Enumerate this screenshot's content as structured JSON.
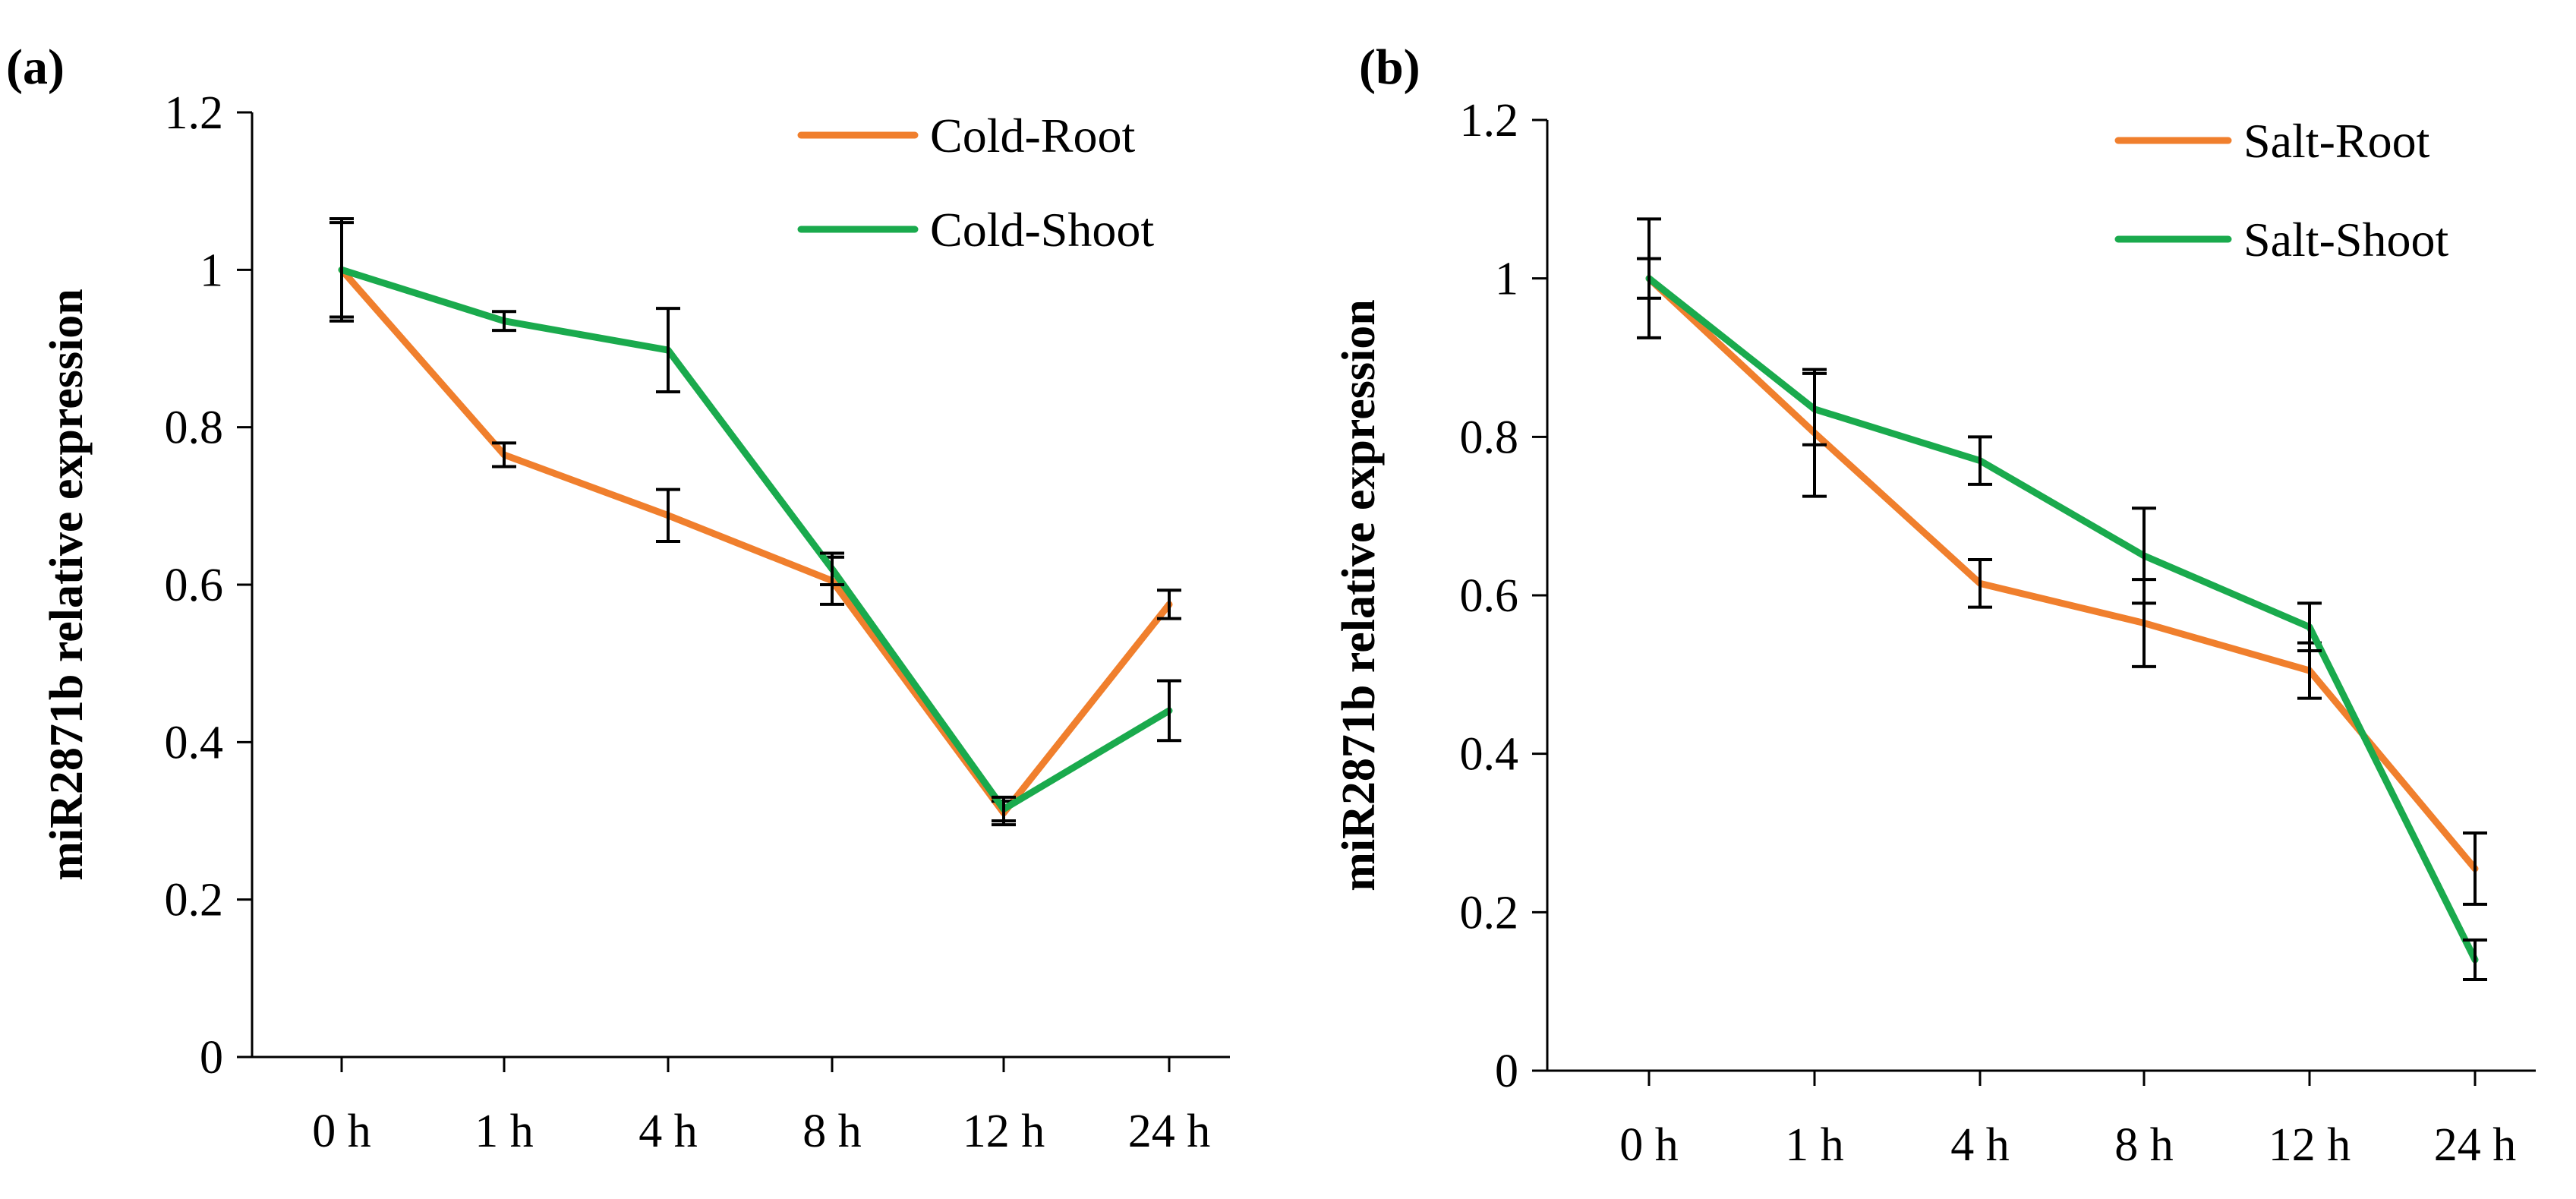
{
  "chart_data": [
    {
      "type": "line",
      "panel_label": "(a)",
      "title": "",
      "xlabel": "",
      "ylabel": "miR2871b relative expression",
      "categories": [
        "0 h",
        "1 h",
        "4 h",
        "8 h",
        "12 h",
        "24 h"
      ],
      "ylim": [
        0,
        1.2
      ],
      "yticks": [
        "0",
        "0.2",
        "0.4",
        "0.6",
        "0.8",
        "1",
        "1.2"
      ],
      "grid": false,
      "legend_position": "top-right",
      "series": [
        {
          "name": "Cold-Root",
          "color": "#f07f2d",
          "values": [
            1.0,
            0.765,
            0.688,
            0.605,
            0.31,
            0.575
          ],
          "errors": [
            0.06,
            0.015,
            0.033,
            0.03,
            0.015,
            0.018
          ]
        },
        {
          "name": "Cold-Shoot",
          "color": "#1aaa4d",
          "values": [
            1.0,
            0.935,
            0.898,
            0.62,
            0.315,
            0.44
          ],
          "errors": [
            0.065,
            0.012,
            0.053,
            0.02,
            0.015,
            0.038
          ]
        }
      ]
    },
    {
      "type": "line",
      "panel_label": "(b)",
      "title": "",
      "xlabel": "",
      "ylabel": "miR2871b relative expression",
      "categories": [
        "0 h",
        "1 h",
        "4 h",
        "8 h",
        "12 h",
        "24 h"
      ],
      "ylim": [
        0,
        1.2
      ],
      "yticks": [
        "0",
        "0.2",
        "0.4",
        "0.6",
        "0.8",
        "1",
        "1.2"
      ],
      "grid": false,
      "legend_position": "top-right",
      "series": [
        {
          "name": "Salt-Root",
          "color": "#f07f2d",
          "values": [
            1.0,
            0.805,
            0.615,
            0.565,
            0.505,
            0.255
          ],
          "errors": [
            0.025,
            0.08,
            0.03,
            0.055,
            0.035,
            0.045
          ]
        },
        {
          "name": "Salt-Shoot",
          "color": "#1aaa4d",
          "values": [
            1.0,
            0.835,
            0.77,
            0.65,
            0.56,
            0.14
          ],
          "errors": [
            0.075,
            0.045,
            0.03,
            0.06,
            0.03,
            0.025
          ]
        }
      ]
    }
  ]
}
